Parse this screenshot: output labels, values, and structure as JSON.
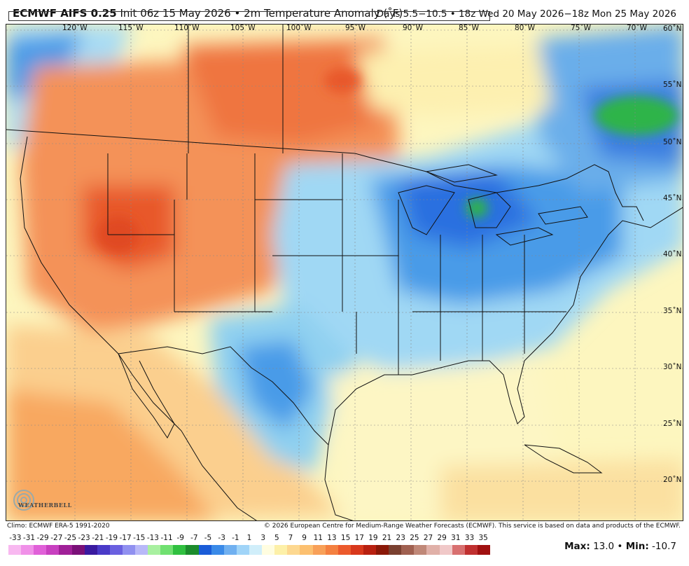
{
  "header": {
    "model": "ECMWF AIFS 0.25",
    "init": " Init 06z 15 May 2026 • 2m Temperature Anomaly (˚F)",
    "valid": "Days 5.5−10.5 • 18z Wed 20 May 2026−18z Mon 25 May 2026"
  },
  "map": {
    "lon_labels": [
      "120˚W",
      "115˚W",
      "110˚W",
      "105˚W",
      "100˚W",
      "95˚W",
      "90˚W",
      "85˚W",
      "80˚W",
      "75˚W",
      "70˚W"
    ],
    "lat_labels": [
      "60˚N",
      "55˚N",
      "50˚N",
      "45˚N",
      "40˚N",
      "35˚N",
      "30˚N",
      "25˚N",
      "20˚N"
    ],
    "colors": {
      "warm_strong": "#e8582b",
      "warm": "#f49258",
      "warm_light": "#fbcf8e",
      "neutral": "#fdf6bf",
      "cool_light": "#c8edf7",
      "cool": "#8fd0f0",
      "cool_mid": "#4a9be8",
      "cool_strong": "#2b6fe0",
      "green": "#2fb44a",
      "land_line": "#111111"
    }
  },
  "footer": {
    "climo": "Climo: ECMWF ERA-5 1991-2020",
    "copyright": "© 2026 European Centre for Medium-Range Weather Forecasts (ECMWF). This service is based on data and products of the ECMWF."
  },
  "colorbar": {
    "labels": [
      "-33",
      "-31",
      "-29",
      "-27",
      "-25",
      "-23",
      "-21",
      "-19",
      "-17",
      "-15",
      "-13",
      "-11",
      "-9",
      "-7",
      "-5",
      "-3",
      "-1",
      "1",
      "3",
      "5",
      "7",
      "9",
      "11",
      "13",
      "15",
      "17",
      "19",
      "21",
      "23",
      "25",
      "27",
      "29",
      "31",
      "33",
      "35"
    ],
    "colors": [
      "#f8b8f0",
      "#f090e8",
      "#e060d8",
      "#c840c0",
      "#a02098",
      "#7a1078",
      "#3a1aa0",
      "#4a3ac8",
      "#6a60e0",
      "#9090f0",
      "#b8b8f8",
      "#a8f0a0",
      "#70e070",
      "#30c040",
      "#1c8c2c",
      "#1a5cd8",
      "#3a8ae8",
      "#70b0f0",
      "#a0d4f8",
      "#d0eefa",
      "#fffde0",
      "#fdf0a8",
      "#fdd890",
      "#fcc070",
      "#f8a058",
      "#f48040",
      "#ec5a2c",
      "#d8381c",
      "#b82010",
      "#8a1808",
      "#7a4030",
      "#a06050",
      "#c08878",
      "#e0b0a8",
      "#f0c8c8",
      "#d87070",
      "#c03030",
      "#a01010"
    ],
    "max_label": "Max:",
    "max_value": " 13.0 • ",
    "min_label": "Min:",
    "min_value": " -10.7"
  },
  "logo": {
    "text": "WEATHERBELL"
  }
}
